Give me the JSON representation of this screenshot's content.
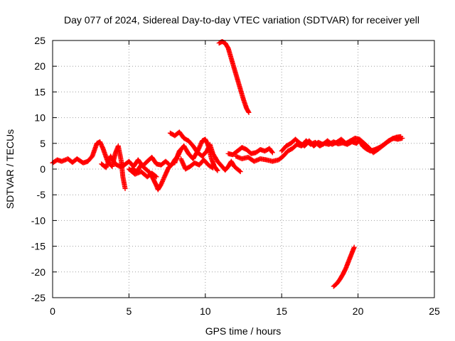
{
  "chart_data": {
    "type": "scatter",
    "title": "Day 077 of 2024, Sidereal Day-to-day VTEC variation (SDTVAR) for receiver yell",
    "xlabel": "GPS time / hours",
    "ylabel": "SDTVAR / TECUs",
    "xlim": [
      0,
      25
    ],
    "ylim": [
      -25,
      25
    ],
    "x_ticks": [
      0,
      5,
      10,
      15,
      20,
      25
    ],
    "y_ticks": [
      25,
      20,
      15,
      10,
      5,
      0,
      -5,
      -10,
      -15,
      -20,
      -25
    ],
    "grid": true,
    "legend": "none",
    "marker": "+",
    "series": [
      {
        "name": "SDTVAR",
        "color": "#ff0000",
        "segments": [
          [
            [
              0,
              1.2
            ],
            [
              0.3,
              1.8
            ],
            [
              0.6,
              1.5
            ],
            [
              1.0,
              2.0
            ],
            [
              1.3,
              1.3
            ],
            [
              1.6,
              2.0
            ],
            [
              2.0,
              1.2
            ],
            [
              2.3,
              1.5
            ],
            [
              2.6,
              2.5
            ],
            [
              2.9,
              5.0
            ],
            [
              3.1,
              5.3
            ],
            [
              3.3,
              4.0
            ],
            [
              3.6,
              1.5
            ],
            [
              3.9,
              0.5
            ],
            [
              4.1,
              3.0
            ],
            [
              4.3,
              4.5
            ],
            [
              4.5,
              1.5
            ],
            [
              4.6,
              -1.5
            ],
            [
              4.75,
              -3.8
            ]
          ],
          [
            [
              3.2,
              1.0
            ],
            [
              3.5,
              0.3
            ],
            [
              3.8,
              2.5
            ],
            [
              4.1,
              1.0
            ],
            [
              4.4,
              0.5
            ],
            [
              4.7,
              0.8
            ],
            [
              5.0,
              1.5
            ],
            [
              5.3,
              0.5
            ],
            [
              5.6,
              1.8
            ],
            [
              5.9,
              0.6
            ],
            [
              6.2,
              1.5
            ],
            [
              6.5,
              2.3
            ],
            [
              6.8,
              1.0
            ],
            [
              7.1,
              0.8
            ],
            [
              7.4,
              1.5
            ],
            [
              7.6,
              1.0
            ]
          ],
          [
            [
              5.2,
              0.2
            ],
            [
              5.5,
              -0.5
            ],
            [
              5.8,
              0.8
            ],
            [
              6.1,
              0.0
            ],
            [
              6.4,
              -0.8
            ],
            [
              6.6,
              -2.0
            ],
            [
              6.8,
              -3.2
            ],
            [
              6.9,
              -4.0
            ],
            [
              7.1,
              -3.0
            ],
            [
              7.4,
              -1.0
            ],
            [
              7.6,
              0.3
            ],
            [
              7.8,
              0.8
            ],
            [
              8.0,
              1.8
            ],
            [
              8.2,
              2.5
            ],
            [
              8.4,
              3.8
            ]
          ],
          [
            [
              5.0,
              0.0
            ],
            [
              5.4,
              -1.0
            ],
            [
              5.8,
              -0.5
            ],
            [
              6.2,
              -1.5
            ],
            [
              6.5,
              -0.8
            ],
            [
              6.8,
              -1.5
            ]
          ],
          [
            [
              7.7,
              7.0
            ],
            [
              8.0,
              6.5
            ],
            [
              8.3,
              7.2
            ],
            [
              8.6,
              6.0
            ],
            [
              8.9,
              5.5
            ],
            [
              9.2,
              4.5
            ],
            [
              9.5,
              3.2
            ],
            [
              9.8,
              2.5
            ],
            [
              10.1,
              3.5
            ],
            [
              10.3,
              4.8
            ],
            [
              10.5,
              3.0
            ],
            [
              10.8,
              1.5
            ],
            [
              11.1,
              0.5
            ],
            [
              11.3,
              -0.2
            ],
            [
              11.5,
              0.5
            ],
            [
              11.7,
              1.5
            ],
            [
              11.9,
              0.5
            ],
            [
              12.1,
              0.0
            ],
            [
              12.3,
              -0.5
            ]
          ],
          [
            [
              8.0,
              1.2
            ],
            [
              8.3,
              3.5
            ],
            [
              8.6,
              4.5
            ],
            [
              8.9,
              3.0
            ],
            [
              9.2,
              2.0
            ],
            [
              9.5,
              3.5
            ],
            [
              9.8,
              5.5
            ],
            [
              10.0,
              5.8
            ],
            [
              10.2,
              4.5
            ],
            [
              10.4,
              2.0
            ],
            [
              10.6,
              0.5
            ],
            [
              10.8,
              -0.3
            ]
          ],
          [
            [
              8.4,
              2.0
            ],
            [
              8.7,
              0.0
            ],
            [
              9.0,
              0.5
            ],
            [
              9.3,
              1.2
            ],
            [
              9.6,
              0.8
            ],
            [
              9.9,
              1.8
            ],
            [
              10.2,
              0.8
            ],
            [
              10.5,
              0.2
            ]
          ],
          [
            [
              11.5,
              3.0
            ],
            [
              11.8,
              2.8
            ],
            [
              12.1,
              3.5
            ],
            [
              12.4,
              4.2
            ],
            [
              12.7,
              3.8
            ],
            [
              13.0,
              3.0
            ],
            [
              13.3,
              3.2
            ],
            [
              13.6,
              3.8
            ],
            [
              13.9,
              3.5
            ],
            [
              14.2,
              4.0
            ],
            [
              14.4,
              3.2
            ]
          ],
          [
            [
              12.0,
              2.5
            ],
            [
              12.4,
              2.0
            ],
            [
              12.8,
              2.3
            ],
            [
              13.2,
              1.5
            ],
            [
              13.6,
              2.0
            ],
            [
              14.0,
              1.8
            ],
            [
              14.4,
              1.5
            ],
            [
              14.8,
              1.8
            ],
            [
              15.1,
              2.5
            ],
            [
              15.4,
              3.5
            ],
            [
              15.7,
              4.0
            ],
            [
              16.0,
              4.8
            ],
            [
              16.3,
              4.5
            ],
            [
              16.6,
              5.5
            ],
            [
              16.9,
              4.8
            ],
            [
              17.2,
              5.2
            ],
            [
              17.5,
              4.5
            ],
            [
              17.8,
              5.0
            ],
            [
              18.1,
              4.8
            ],
            [
              18.4,
              5.3
            ],
            [
              18.7,
              4.9
            ],
            [
              19.0,
              5.1
            ],
            [
              19.3,
              4.8
            ],
            [
              19.6,
              5.3
            ],
            [
              19.9,
              5.0
            ],
            [
              20.1,
              5.6
            ],
            [
              20.3,
              4.5
            ],
            [
              20.5,
              4.0
            ],
            [
              20.8,
              3.5
            ],
            [
              21.1,
              3.8
            ],
            [
              21.4,
              4.2
            ],
            [
              21.7,
              4.8
            ],
            [
              22.0,
              5.5
            ],
            [
              22.3,
              6.0
            ],
            [
              22.6,
              5.8
            ],
            [
              22.9,
              6.0
            ]
          ],
          [
            [
              15.0,
              3.5
            ],
            [
              15.3,
              4.5
            ],
            [
              15.6,
              5.0
            ],
            [
              15.9,
              5.8
            ],
            [
              16.2,
              5.0
            ],
            [
              16.5,
              4.5
            ],
            [
              16.8,
              5.5
            ],
            [
              17.1,
              4.5
            ],
            [
              17.4,
              5.2
            ],
            [
              17.7,
              4.8
            ],
            [
              18.0,
              5.5
            ],
            [
              18.3,
              4.8
            ],
            [
              18.6,
              5.2
            ],
            [
              18.9,
              5.8
            ],
            [
              19.2,
              5.0
            ],
            [
              19.5,
              5.5
            ],
            [
              19.8,
              6.0
            ],
            [
              20.1,
              5.8
            ],
            [
              20.4,
              5.0
            ],
            [
              20.7,
              4.2
            ],
            [
              21.0,
              3.2
            ],
            [
              21.3,
              3.8
            ],
            [
              21.6,
              4.5
            ],
            [
              21.9,
              5.2
            ],
            [
              22.2,
              5.8
            ],
            [
              22.5,
              6.2
            ],
            [
              22.8,
              6.3
            ]
          ],
          [
            [
              10.9,
              24.5
            ],
            [
              11.1,
              24.8
            ],
            [
              11.3,
              24.5
            ],
            [
              11.5,
              23.5
            ],
            [
              11.7,
              21.5
            ],
            [
              11.9,
              19.5
            ],
            [
              12.1,
              17.5
            ],
            [
              12.3,
              15.5
            ],
            [
              12.5,
              13.5
            ],
            [
              12.7,
              11.8
            ],
            [
              12.85,
              11.0
            ]
          ],
          [
            [
              18.4,
              -22.8
            ],
            [
              18.6,
              -22.3
            ],
            [
              18.8,
              -21.5
            ],
            [
              19.0,
              -20.5
            ],
            [
              19.2,
              -19.3
            ],
            [
              19.4,
              -17.8
            ],
            [
              19.6,
              -16.3
            ],
            [
              19.75,
              -15.2
            ]
          ]
        ]
      }
    ]
  }
}
